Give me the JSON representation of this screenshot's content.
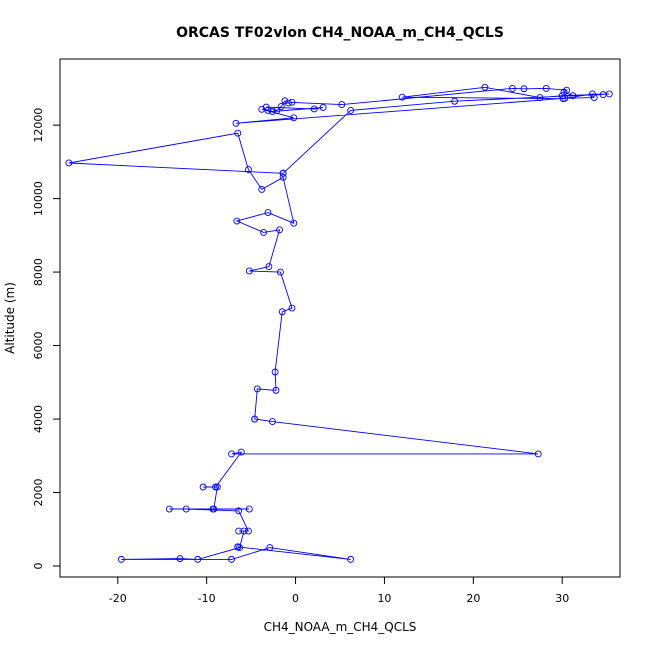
{
  "chart_data": {
    "type": "line",
    "markers": "open-circle",
    "title": "ORCAS TF02vlon CH4_NOAA_m_CH4_QCLS",
    "xlabel": "CH4_NOAA_m_CH4_QCLS",
    "ylabel": "Altitude (m)",
    "xlim": [
      -26.5,
      36.5
    ],
    "ylim": [
      -300,
      13800
    ],
    "xticks": [
      -20,
      -10,
      0,
      10,
      20,
      30
    ],
    "yticks": [
      0,
      2000,
      4000,
      6000,
      8000,
      10000,
      12000
    ],
    "grid": false,
    "line_color": "#0000ff",
    "series": [
      {
        "x": [
          -6.5,
          -6.5,
          6.2,
          -2.9,
          -7.2,
          -19.6,
          -13.0,
          -11.0,
          -6.3,
          -5.8,
          -6.4,
          -5.3,
          -6.4,
          -12.3,
          -14.2,
          -9.3,
          -5.2,
          -9.2,
          -8.8,
          -10.4,
          -9.0,
          -6.1,
          -7.2,
          27.3,
          -2.6,
          -4.6,
          -4.6,
          -4.3,
          -2.2,
          -2.3,
          -1.5,
          -0.4,
          -1.7,
          -5.2,
          -3.0,
          -1.8,
          -3.6,
          -6.6,
          -3.1,
          -0.2,
          -1.4,
          -3.8,
          -5.3,
          -6.5,
          -25.5,
          -1.4,
          -1.4,
          6.2,
          17.9,
          35.3,
          30.0,
          27.5,
          21.3,
          12.0,
          30.1,
          33.4,
          34.6,
          31.2,
          30.2,
          30.5,
          28.2,
          25.7,
          24.4,
          5.2,
          -0.4,
          -0.8,
          -1.2,
          -1.6,
          -2.1,
          -3.3,
          2.1,
          3.1,
          -2.6,
          -3.1,
          -3.8,
          -0.2,
          -6.7,
          30.3,
          33.6
        ],
        "y": [
          520,
          520,
          180,
          500,
          180,
          180,
          200,
          180,
          500,
          950,
          950,
          950,
          1500,
          1550,
          1550,
          1550,
          1550,
          1550,
          2150,
          2150,
          2150,
          3100,
          3050,
          3050,
          3930,
          4000,
          4000,
          4820,
          4780,
          5280,
          6920,
          7020,
          8000,
          8030,
          8150,
          9150,
          9080,
          9390,
          9620,
          9330,
          10580,
          10250,
          10790,
          11780,
          10970,
          10690,
          10690,
          12400,
          12650,
          12850,
          12800,
          12750,
          13030,
          12760,
          12720,
          12850,
          12830,
          12800,
          12900,
          12950,
          13000,
          12990,
          13000,
          12560,
          12620,
          12600,
          12660,
          12510,
          12400,
          12490,
          12440,
          12480,
          12370,
          12400,
          12430,
          12200,
          12050,
          12730,
          12750
        ]
      }
    ]
  }
}
